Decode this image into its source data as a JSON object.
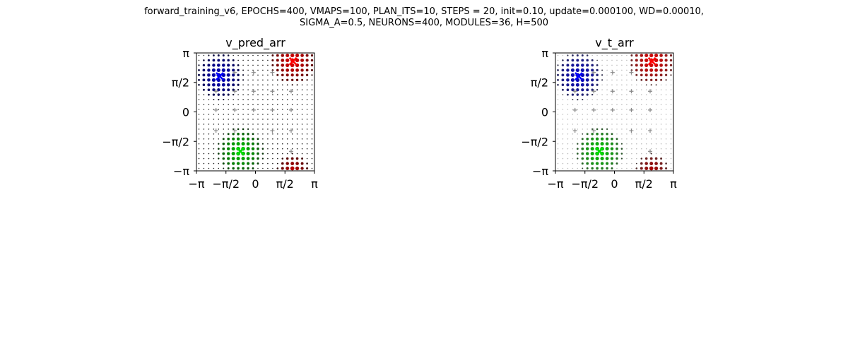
{
  "suptitle": {
    "line1": "forward_training_v6, EPOCHS=400, VMAPS=100, PLAN_ITS=10, STEPS = 20, init=0.10, update=0.000100, WD=0.00010,",
    "line2": "SIGMA_A=0.5, NEURONS=400, MODULES=36, H=500"
  },
  "chart_data": [
    {
      "type": "scatter",
      "title": "v_pred_arr",
      "xlim": [
        -3.14159,
        3.14159
      ],
      "ylim": [
        -3.14159,
        3.14159
      ],
      "xticks": [
        -3.14159,
        -1.5708,
        0,
        1.5708,
        3.14159
      ],
      "yticks": [
        -3.14159,
        -1.5708,
        0,
        1.5708,
        3.14159
      ],
      "xtick_labels": [
        "−π",
        "−π/2",
        "0",
        "π/2",
        "π"
      ],
      "ytick_labels": [
        "−π",
        "−π/2",
        "0",
        "π/2",
        "π"
      ],
      "grid_n": 24,
      "background_level": 0.15,
      "markers": [
        {
          "x": 2.0,
          "y": 2.7,
          "color": "#ff0000"
        },
        {
          "x": -1.9,
          "y": 1.9,
          "color": "#0000ff"
        },
        {
          "x": -0.8,
          "y": -2.1,
          "color": "#00dd00"
        }
      ],
      "gray_pluses": [
        [
          -1.1,
          2.1
        ],
        [
          -0.1,
          2.1
        ],
        [
          0.9,
          2.1
        ],
        [
          -2.1,
          1.1
        ],
        [
          -1.1,
          1.1
        ],
        [
          -0.1,
          1.1
        ],
        [
          0.9,
          1.1
        ],
        [
          1.9,
          1.1
        ],
        [
          -2.1,
          0.1
        ],
        [
          -1.1,
          0.1
        ],
        [
          -0.1,
          0.1
        ],
        [
          0.9,
          0.1
        ],
        [
          1.9,
          0.1
        ],
        [
          -2.1,
          -1.0
        ],
        [
          -1.1,
          -1.0
        ],
        [
          0.9,
          -1.0
        ],
        [
          1.9,
          -1.0
        ],
        [
          1.9,
          -2.1
        ]
      ],
      "clusters": [
        {
          "x": 2.0,
          "y": 2.7,
          "color": [
            230,
            0,
            0
          ],
          "radius": 1.3
        },
        {
          "x": 2.0,
          "y": -3.1,
          "color": [
            190,
            0,
            0
          ],
          "radius": 0.9
        },
        {
          "x": -1.9,
          "y": 1.9,
          "color": [
            0,
            0,
            200
          ],
          "radius": 1.3
        },
        {
          "x": -0.8,
          "y": -2.1,
          "color": [
            0,
            200,
            0
          ],
          "radius": 1.3
        }
      ]
    },
    {
      "type": "scatter",
      "title": "v_t_arr",
      "xlim": [
        -3.14159,
        3.14159
      ],
      "ylim": [
        -3.14159,
        3.14159
      ],
      "xticks": [
        -3.14159,
        -1.5708,
        0,
        1.5708,
        3.14159
      ],
      "yticks": [
        -3.14159,
        -1.5708,
        0,
        1.5708,
        3.14159
      ],
      "xtick_labels": [
        "−π",
        "−π/2",
        "0",
        "π/2",
        "π"
      ],
      "ytick_labels": [
        "−π",
        "−π/2",
        "0",
        "π/2",
        "π"
      ],
      "grid_n": 24,
      "background_level": 0.75,
      "markers": [
        {
          "x": 2.0,
          "y": 2.7,
          "color": "#ff0000"
        },
        {
          "x": -1.9,
          "y": 1.9,
          "color": "#0000ff"
        },
        {
          "x": -0.8,
          "y": -2.1,
          "color": "#00dd00"
        }
      ],
      "gray_pluses": [
        [
          -1.1,
          2.1
        ],
        [
          -0.1,
          2.1
        ],
        [
          0.9,
          2.1
        ],
        [
          -2.1,
          1.1
        ],
        [
          -1.1,
          1.1
        ],
        [
          -0.1,
          1.1
        ],
        [
          0.9,
          1.1
        ],
        [
          1.9,
          1.1
        ],
        [
          -2.1,
          0.1
        ],
        [
          -1.1,
          0.1
        ],
        [
          -0.1,
          0.1
        ],
        [
          0.9,
          0.1
        ],
        [
          1.9,
          0.1
        ],
        [
          -2.1,
          -1.0
        ],
        [
          -1.1,
          -1.0
        ],
        [
          0.9,
          -1.0
        ],
        [
          1.9,
          -1.0
        ],
        [
          1.9,
          -2.1
        ]
      ],
      "clusters": [
        {
          "x": 2.0,
          "y": 2.7,
          "color": [
            230,
            0,
            0
          ],
          "radius": 1.3
        },
        {
          "x": 2.0,
          "y": -3.1,
          "color": [
            170,
            0,
            0
          ],
          "radius": 0.9
        },
        {
          "x": -1.9,
          "y": 1.9,
          "color": [
            0,
            0,
            200
          ],
          "radius": 1.3
        },
        {
          "x": -0.8,
          "y": -2.1,
          "color": [
            0,
            200,
            0
          ],
          "radius": 1.3
        }
      ]
    }
  ]
}
